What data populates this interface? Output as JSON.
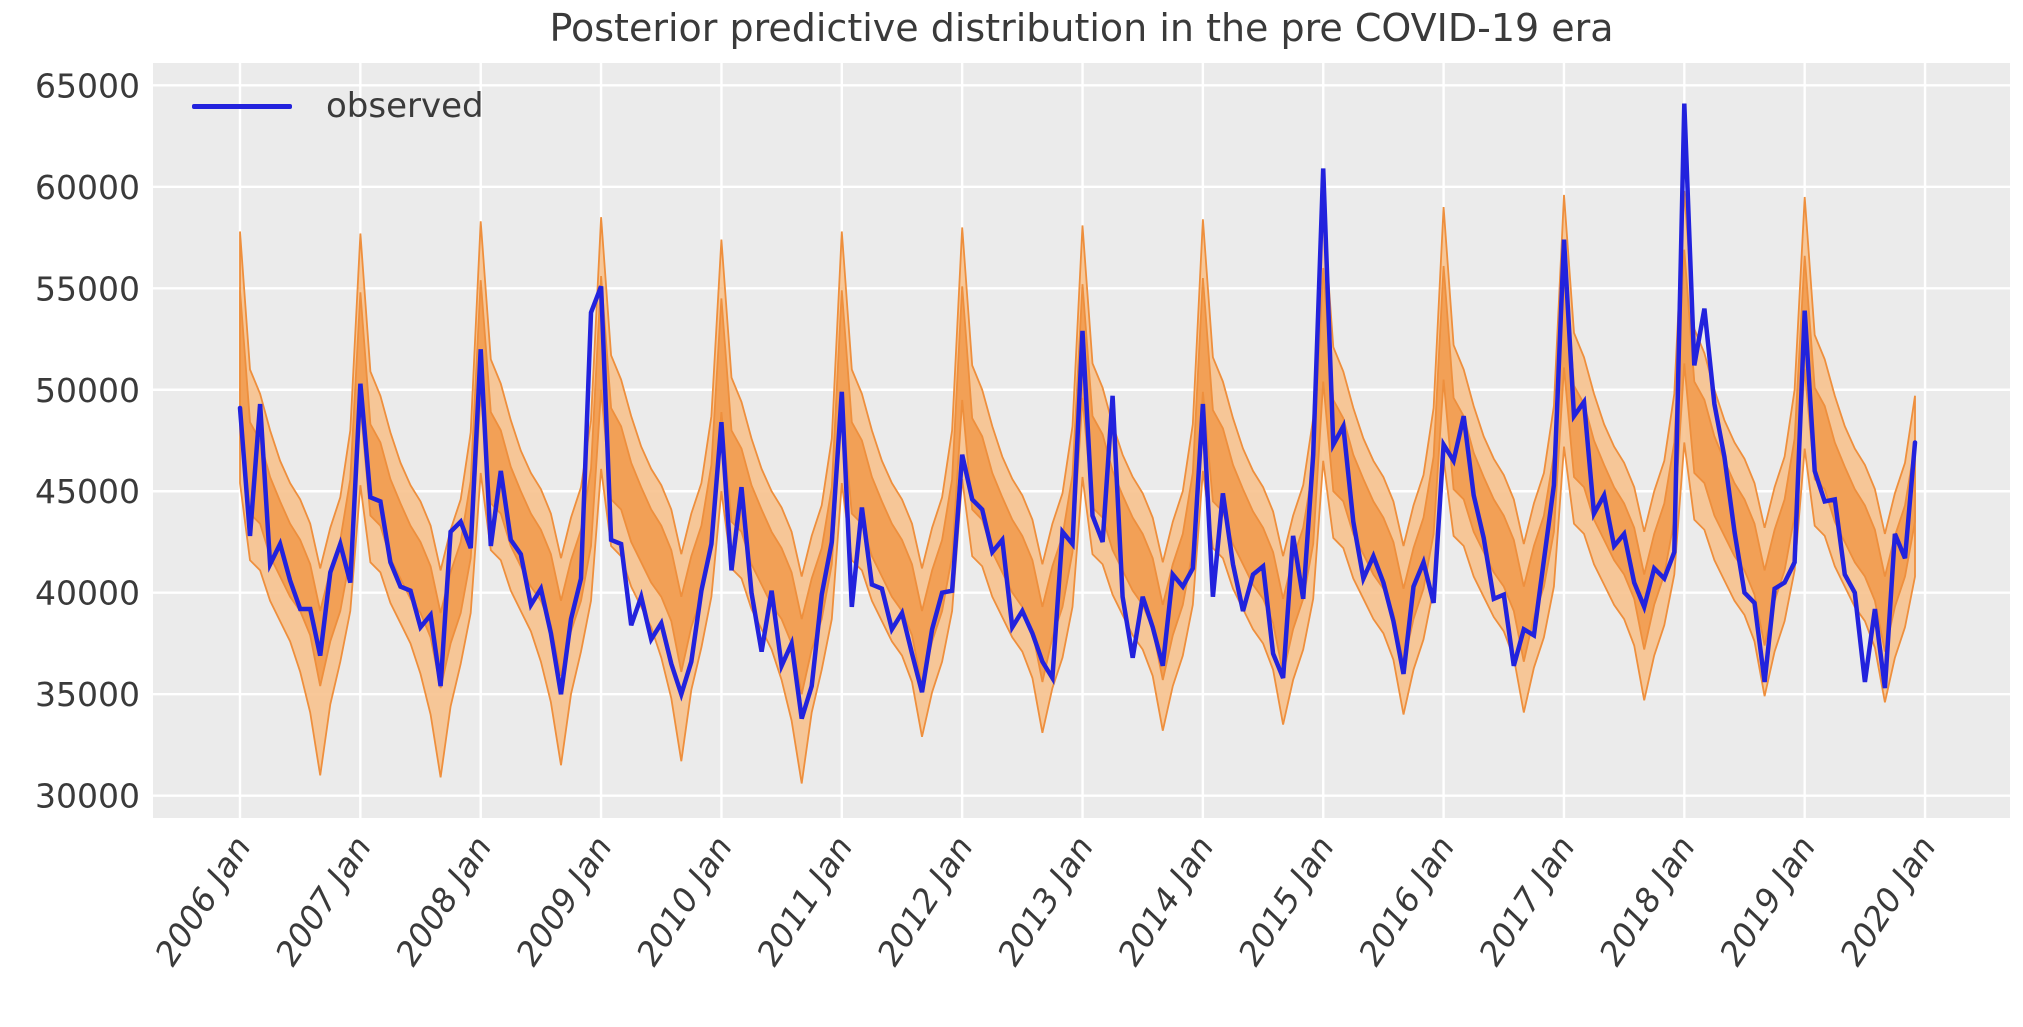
{
  "title": "Posterior predictive distribution in the pre COVID-19 era",
  "legend": {
    "observed_label": "observed"
  },
  "colors": {
    "observed_line": "#2222dd",
    "band_outer": "#f7c28e",
    "band_inner": "#f19e52",
    "band_edge": "#ee8f3d",
    "plot_background": "#ebebeb",
    "grid": "#ffffff",
    "text": "#3a3a3a"
  },
  "chart_data": {
    "type": "line",
    "title": "Posterior predictive distribution in the pre COVID-19 era",
    "x_unit": "month",
    "x_range": [
      "2006-01",
      "2019-12"
    ],
    "x_tick_labels": [
      "2006 Jan",
      "2007 Jan",
      "2008 Jan",
      "2009 Jan",
      "2010 Jan",
      "2011 Jan",
      "2012 Jan",
      "2013 Jan",
      "2014 Jan",
      "2015 Jan",
      "2016 Jan",
      "2017 Jan",
      "2018 Jan",
      "2019 Jan",
      "2020 Jan"
    ],
    "y_ticks": [
      30000,
      35000,
      40000,
      45000,
      50000,
      55000,
      60000,
      65000
    ],
    "ylim": [
      28900,
      66100
    ],
    "grid": true,
    "legend_position": "upper left",
    "observed_series": {
      "name": "observed",
      "values_by_year": {
        "2006": [
          49100,
          42800,
          49300,
          41400,
          42400,
          40600,
          39200,
          39200,
          36900,
          41000,
          42400,
          40500
        ],
        "2007": [
          50300,
          44700,
          44500,
          41500,
          40300,
          40100,
          38300,
          38900,
          35400,
          43000,
          43500,
          42200
        ],
        "2008": [
          52000,
          42300,
          46000,
          42600,
          41900,
          39400,
          40200,
          38000,
          35000,
          38700,
          40700,
          53800
        ],
        "2009": [
          55100,
          42600,
          42400,
          38400,
          39800,
          37700,
          38500,
          36500,
          35000,
          36600,
          40100,
          42400
        ],
        "2010": [
          48400,
          41100,
          45200,
          40000,
          37100,
          40100,
          36400,
          37500,
          33800,
          35400,
          39900,
          42500
        ],
        "2011": [
          49900,
          39300,
          44200,
          40400,
          40200,
          38200,
          39000,
          37000,
          35100,
          38200,
          40000,
          40100
        ],
        "2012": [
          46800,
          44600,
          44100,
          42000,
          42600,
          38300,
          39100,
          38000,
          36600,
          35800,
          43000,
          42400
        ],
        "2013": [
          52900,
          43800,
          42500,
          49700,
          39800,
          36800,
          39800,
          38300,
          36400,
          40900,
          40300,
          41200
        ],
        "2014": [
          49300,
          39800,
          44900,
          41400,
          39100,
          40900,
          41300,
          37000,
          35800,
          42800,
          39700,
          46800
        ],
        "2015": [
          60900,
          47300,
          48200,
          43500,
          40700,
          41800,
          40500,
          38600,
          36000,
          40300,
          41500,
          39500
        ],
        "2016": [
          47300,
          46500,
          48700,
          44800,
          42700,
          39700,
          39900,
          36400,
          38200,
          37900,
          41600,
          45300
        ],
        "2017": [
          57400,
          48700,
          49400,
          43900,
          44800,
          42300,
          42900,
          40500,
          39300,
          41200,
          40700,
          42000
        ],
        "2018": [
          64100,
          51200,
          54000,
          49300,
          46700,
          43000,
          40000,
          39500,
          35600,
          40200,
          40500,
          41500
        ],
        "2019": [
          53900,
          46000,
          44500,
          44600,
          40900,
          40000,
          35600,
          39200,
          35300,
          42900,
          41700,
          47400
        ]
      }
    },
    "uncertainty_bands": {
      "description": "Posterior predictive credible intervals: inner (darker orange) and outer (lighter orange) bands around the seasonal prediction",
      "month_template": {
        "outer_upper": [
          58800,
          52000,
          50800,
          49000,
          47500,
          46400,
          45600,
          44400,
          42200,
          44200,
          45700,
          49000
        ],
        "inner_upper": [
          55900,
          49400,
          48500,
          46700,
          45500,
          44400,
          43600,
          42400,
          40100,
          42100,
          43600,
          46600
        ],
        "inner_lower": [
          50300,
          44900,
          44400,
          42800,
          41800,
          40800,
          40100,
          38900,
          36400,
          38600,
          40100,
          42800
        ],
        "outer_lower": [
          46400,
          42600,
          42100,
          40600,
          39600,
          38600,
          37900,
          36600,
          33900,
          36100,
          37600,
          40100
        ]
      },
      "year_offsets": {
        "2006": -1000,
        "2007": -1100,
        "2008": -500,
        "2009": -300,
        "2010": -1400,
        "2011": -1000,
        "2012": -800,
        "2013": -700,
        "2014": -400,
        "2015": 100,
        "2016": 200,
        "2017": 800,
        "2018": 1000,
        "2019": 700
      },
      "early_years_extra_outer_low": {
        "years": [
          2006,
          2007,
          2008,
          2009,
          2010
        ],
        "months": [
          "Jul",
          "Aug",
          "Sep",
          "Oct"
        ],
        "offsets": [
          -800,
          -1500,
          -1900,
          -600
        ]
      }
    }
  }
}
